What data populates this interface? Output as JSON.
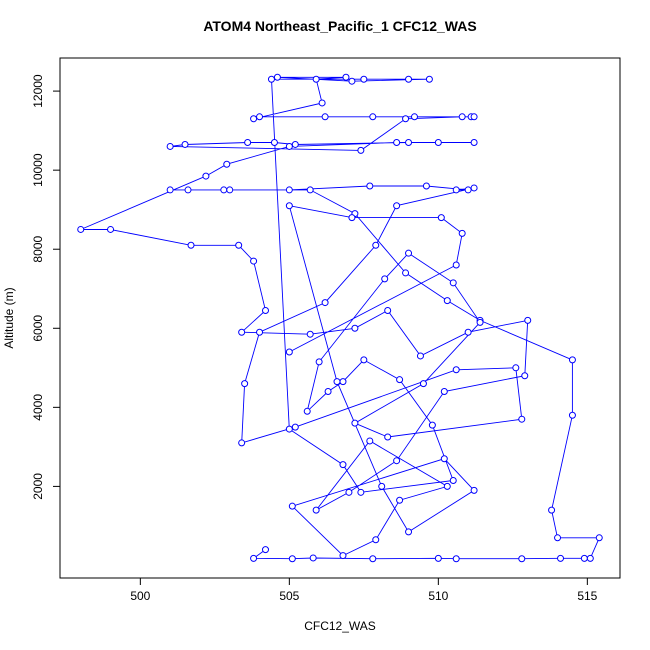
{
  "chart_data": {
    "type": "line",
    "title": "ATOM4 Northeast_Pacific_1 CFC12_WAS",
    "x_label": "CFC12_WAS",
    "y_label": "Altitude (m)",
    "x": [
      504.2,
      503.8,
      505.1,
      505.8,
      507.8,
      510.0,
      510.6,
      512.8,
      514.1,
      514.9,
      515.1,
      515.4,
      514.0,
      513.8,
      514.5,
      514.5,
      511.4,
      510.3,
      508.9,
      507.2,
      505.7,
      501.0,
      501.6,
      502.8,
      503.0,
      505.0,
      507.7,
      509.6,
      511.0,
      510.6,
      511.2,
      508.6,
      507.9,
      506.2,
      504.0,
      503.5,
      503.4,
      505.2,
      510.6,
      512.6,
      512.8,
      508.3,
      507.2,
      509.5,
      511.4,
      510.5,
      509.0,
      508.2,
      506.0,
      505.6,
      506.3,
      506.8,
      507.5,
      508.7,
      509.8,
      510.5,
      507.4,
      506.8,
      505.0,
      504.4,
      507.5,
      509.0,
      509.7,
      507.1,
      504.6,
      506.9,
      505.9,
      506.1,
      503.8,
      504.0,
      506.2,
      507.8,
      509.2,
      511.1,
      511.2,
      510.8,
      508.9,
      507.4,
      501.0,
      501.5,
      503.6,
      504.5,
      505.2,
      509.0,
      510.0,
      511.2,
      508.6,
      505.0,
      502.9,
      502.2,
      498.0,
      499.0,
      501.7,
      503.3,
      503.8,
      504.2,
      503.4,
      505.7,
      507.2,
      508.3,
      509.4,
      511.0,
      513.0,
      512.9,
      510.2,
      508.6,
      507.0,
      505.9,
      507.7,
      510.3,
      508.7,
      507.9,
      506.8,
      505.1,
      510.2,
      511.2,
      509.0,
      508.1,
      506.6,
      505.0,
      507.1,
      510.1,
      510.8,
      510.6,
      505.0
    ],
    "values": [
      400,
      180,
      170,
      190,
      170,
      180,
      170,
      170,
      180,
      180,
      180,
      700,
      700,
      1400,
      3800,
      5200,
      6200,
      6700,
      7400,
      8900,
      9500,
      9500,
      9500,
      9500,
      9500,
      9500,
      9600,
      9600,
      9500,
      9500,
      9550,
      9100,
      8100,
      6650,
      5900,
      4600,
      3100,
      3500,
      4950,
      5000,
      3700,
      3250,
      3600,
      4600,
      6150,
      7150,
      7900,
      7250,
      5150,
      3900,
      4400,
      4650,
      5200,
      4700,
      3550,
      2150,
      1850,
      2550,
      3450,
      12300,
      12300,
      12300,
      12300,
      12250,
      12350,
      12350,
      12300,
      11700,
      11300,
      11350,
      11350,
      11350,
      11350,
      11350,
      11350,
      11350,
      11300,
      10500,
      10600,
      10650,
      10700,
      10700,
      10650,
      10700,
      10700,
      10700,
      10700,
      10600,
      10150,
      9850,
      8500,
      8500,
      8100,
      8100,
      7700,
      6450,
      5900,
      5850,
      6000,
      6450,
      5300,
      5900,
      6200,
      4800,
      4400,
      2650,
      1850,
      1400,
      3150,
      2000,
      1650,
      650,
      250,
      1500,
      2700,
      1900,
      850,
      2000,
      4650,
      9100,
      8800,
      8800,
      8400,
      7600,
      5400
    ]
  }
}
